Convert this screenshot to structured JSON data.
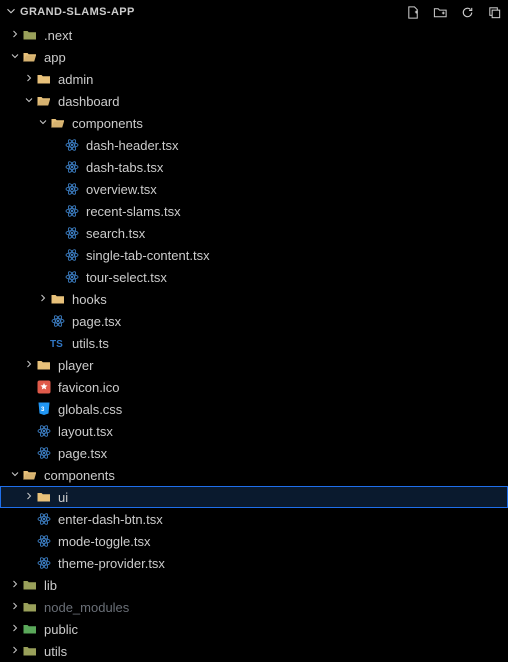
{
  "header": {
    "title": "GRAND-SLAMS-APP"
  },
  "colors": {
    "folder_open": "#e8c17a",
    "folder_closed": "#e8c17a",
    "folder_dim": "#99a05a",
    "react": "#3b7cc0",
    "ts": "#3178c6",
    "css": "#2196f3",
    "favicon": "#e05a4a"
  },
  "tree": [
    {
      "depth": 0,
      "kind": "folder-closed-dim",
      "label": ".next",
      "chev": "right",
      "dim": false
    },
    {
      "depth": 0,
      "kind": "folder-open",
      "label": "app",
      "chev": "down"
    },
    {
      "depth": 1,
      "kind": "folder-closed",
      "label": "admin",
      "chev": "right"
    },
    {
      "depth": 1,
      "kind": "folder-open",
      "label": "dashboard",
      "chev": "down"
    },
    {
      "depth": 2,
      "kind": "folder-open",
      "label": "components",
      "chev": "down"
    },
    {
      "depth": 3,
      "kind": "react",
      "label": "dash-header.tsx"
    },
    {
      "depth": 3,
      "kind": "react",
      "label": "dash-tabs.tsx"
    },
    {
      "depth": 3,
      "kind": "react",
      "label": "overview.tsx"
    },
    {
      "depth": 3,
      "kind": "react",
      "label": "recent-slams.tsx"
    },
    {
      "depth": 3,
      "kind": "react",
      "label": "search.tsx"
    },
    {
      "depth": 3,
      "kind": "react",
      "label": "single-tab-content.tsx"
    },
    {
      "depth": 3,
      "kind": "react",
      "label": "tour-select.tsx"
    },
    {
      "depth": 2,
      "kind": "folder-closed",
      "label": "hooks",
      "chev": "right"
    },
    {
      "depth": 2,
      "kind": "react",
      "label": "page.tsx"
    },
    {
      "depth": 2,
      "kind": "ts",
      "label": "utils.ts"
    },
    {
      "depth": 1,
      "kind": "folder-closed",
      "label": "player",
      "chev": "right"
    },
    {
      "depth": 1,
      "kind": "favicon",
      "label": "favicon.ico"
    },
    {
      "depth": 1,
      "kind": "css",
      "label": "globals.css"
    },
    {
      "depth": 1,
      "kind": "react",
      "label": "layout.tsx"
    },
    {
      "depth": 1,
      "kind": "react",
      "label": "page.tsx"
    },
    {
      "depth": 0,
      "kind": "folder-open",
      "label": "components",
      "chev": "down"
    },
    {
      "depth": 1,
      "kind": "folder-closed",
      "label": "ui",
      "chev": "right",
      "selected": true
    },
    {
      "depth": 1,
      "kind": "react",
      "label": "enter-dash-btn.tsx"
    },
    {
      "depth": 1,
      "kind": "react",
      "label": "mode-toggle.tsx"
    },
    {
      "depth": 1,
      "kind": "react",
      "label": "theme-provider.tsx"
    },
    {
      "depth": 0,
      "kind": "folder-closed-dim",
      "label": "lib",
      "chev": "right"
    },
    {
      "depth": 0,
      "kind": "folder-closed-dim",
      "label": "node_modules",
      "chev": "right",
      "dim": true
    },
    {
      "depth": 0,
      "kind": "folder-closed-green",
      "label": "public",
      "chev": "right"
    },
    {
      "depth": 0,
      "kind": "folder-closed-dim",
      "label": "utils",
      "chev": "right"
    }
  ]
}
